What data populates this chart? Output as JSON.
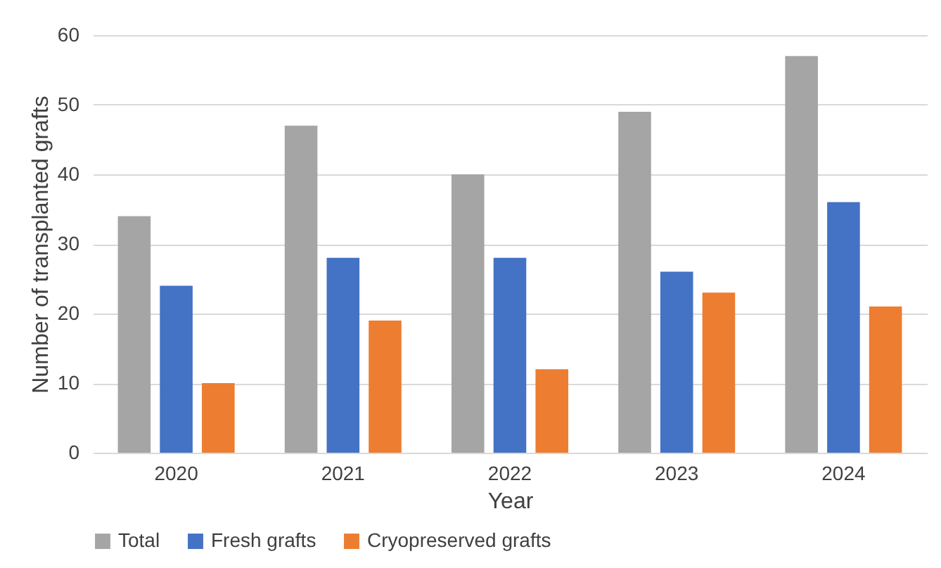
{
  "chart_data": {
    "type": "bar",
    "xlabel": "Year",
    "ylabel": "Number of transplanted grafts",
    "categories": [
      "2020",
      "2021",
      "2022",
      "2023",
      "2024"
    ],
    "series": [
      {
        "name": "Total",
        "color": "#a5a5a5",
        "values": [
          34,
          47,
          40,
          49,
          57
        ]
      },
      {
        "name": "Fresh grafts",
        "color": "#4472c4",
        "values": [
          24,
          28,
          28,
          26,
          36
        ]
      },
      {
        "name": "Cryopreserved grafts",
        "color": "#ed7d31",
        "values": [
          10,
          19,
          12,
          23,
          21
        ]
      }
    ],
    "ylim": [
      0,
      60
    ],
    "yticks": [
      0,
      10,
      20,
      30,
      40,
      50,
      60
    ],
    "grid": "y",
    "legend": "bottom"
  }
}
